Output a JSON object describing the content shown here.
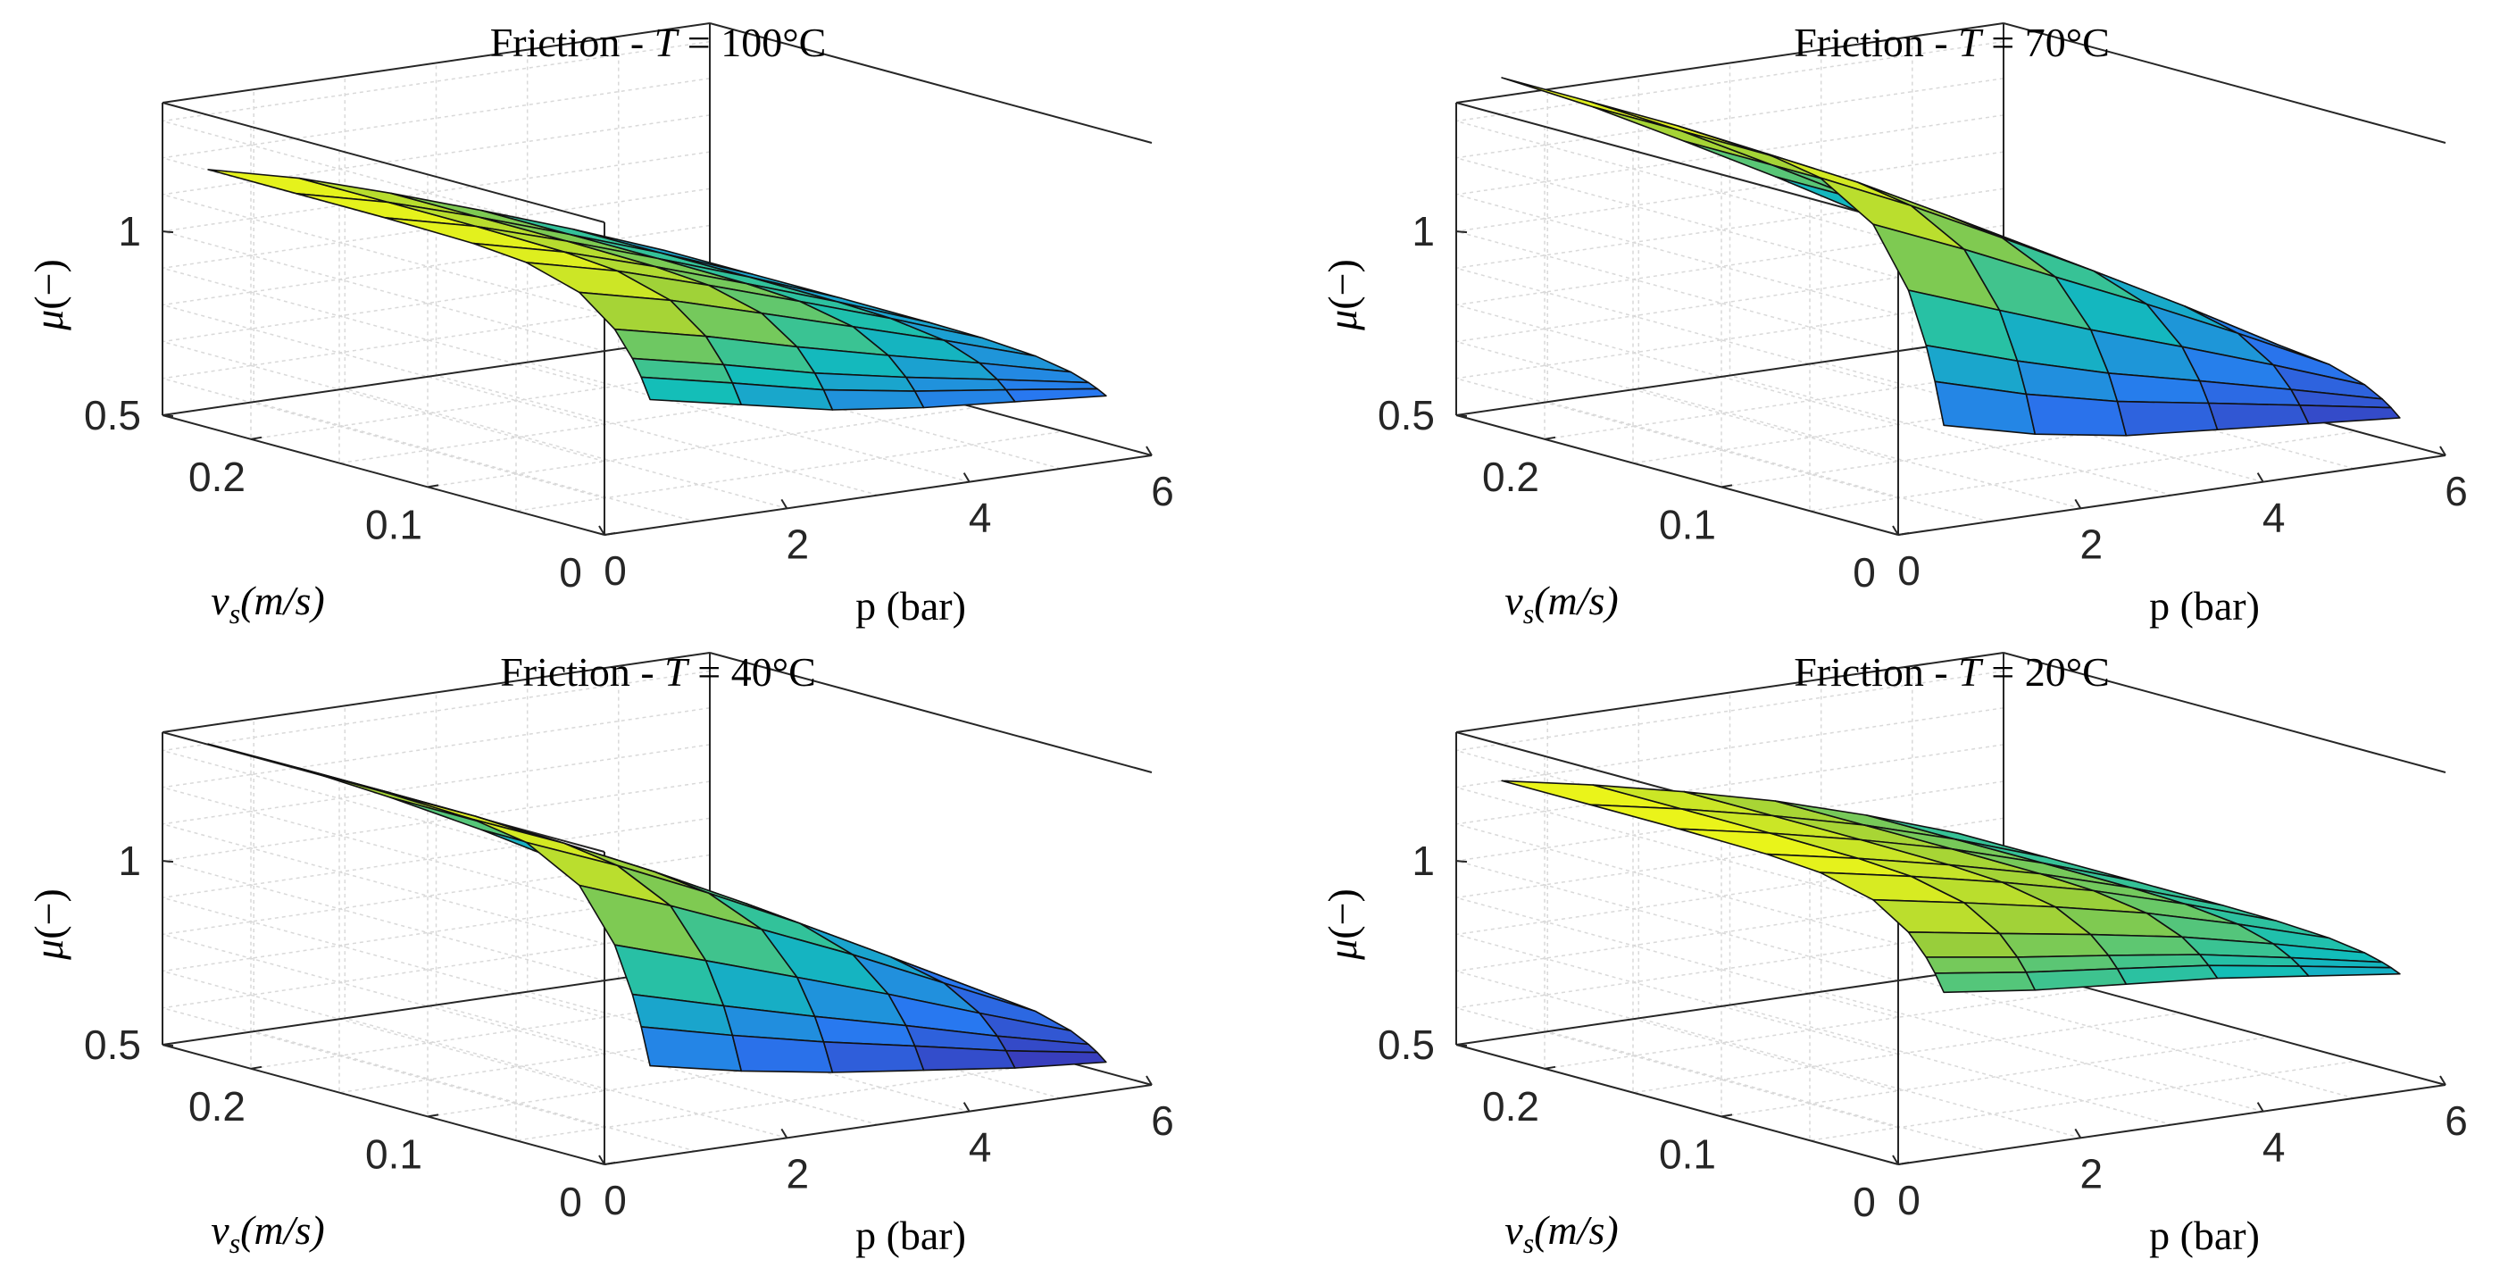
{
  "chart_data": [
    {
      "type": "surface",
      "title_prefix": "Friction - ",
      "title_var": "T",
      "title_value": " = 100°C",
      "xlabel": "p (bar)",
      "ylabel": "v_s(m/s)",
      "ylabel_var": "v",
      "ylabel_sub": "s",
      "ylabel_unit": "(m/s)",
      "zlabel": "μ(−)",
      "zlabel_var": "μ",
      "zlabel_unit": "(−)",
      "xticks": [
        "0",
        "2",
        "4",
        "6"
      ],
      "yticks": [
        "0",
        "0.1",
        "0.2"
      ],
      "zticks": [
        "0.5",
        "1"
      ],
      "xlim": [
        0,
        6
      ],
      "ylim": [
        0,
        0.25
      ],
      "zlim": [
        0.5,
        1.35
      ],
      "p": [
        0.5,
        1.5,
        2.5,
        3.5,
        4.5,
        5.5
      ],
      "v": [
        0.0,
        0.005,
        0.01,
        0.02,
        0.04,
        0.07,
        0.1,
        0.15,
        0.2,
        0.25
      ],
      "mu_at_p_max": 1.15,
      "mu_at_v0": [
        0.85,
        0.8,
        0.75,
        0.72,
        0.7,
        0.68
      ]
    },
    {
      "type": "surface",
      "title_prefix": "Friction - ",
      "title_var": "T",
      "title_value": " = 70°C",
      "xlabel": "p (bar)",
      "ylabel": "v_s(m/s)",
      "ylabel_var": "v",
      "ylabel_sub": "s",
      "ylabel_unit": "(m/s)",
      "zlabel": "μ(−)",
      "zlabel_var": "μ",
      "zlabel_unit": "(−)",
      "xticks": [
        "0",
        "2",
        "4",
        "6"
      ],
      "yticks": [
        "0",
        "0.1",
        "0.2"
      ],
      "zticks": [
        "0.5",
        "1"
      ],
      "xlim": [
        0,
        6
      ],
      "ylim": [
        0,
        0.25
      ],
      "zlim": [
        0.5,
        1.35
      ],
      "p": [
        0.5,
        1.5,
        2.5,
        3.5,
        4.5,
        5.5
      ],
      "v": [
        0.0,
        0.005,
        0.01,
        0.02,
        0.04,
        0.07,
        0.1,
        0.15,
        0.2,
        0.25
      ],
      "mu_at_p_max": 1.4,
      "mu_at_v0": [
        0.78,
        0.72,
        0.68,
        0.66,
        0.64,
        0.62
      ]
    },
    {
      "type": "surface",
      "title_prefix": "Friction - ",
      "title_var": "T",
      "title_value": " = 40°C",
      "xlabel": "p (bar)",
      "ylabel": "v_s(m/s)",
      "ylabel_var": "v",
      "ylabel_sub": "s",
      "ylabel_unit": "(m/s)",
      "zlabel": "μ(−)",
      "zlabel_var": "μ",
      "zlabel_unit": "(−)",
      "xticks": [
        "0",
        "2",
        "4",
        "6"
      ],
      "yticks": [
        "0",
        "0.1",
        "0.2"
      ],
      "zticks": [
        "0.5",
        "1"
      ],
      "xlim": [
        0,
        6
      ],
      "ylim": [
        0,
        0.25
      ],
      "zlim": [
        0.5,
        1.35
      ],
      "p": [
        0.5,
        1.5,
        2.5,
        3.5,
        4.5,
        5.5
      ],
      "v": [
        0.0,
        0.005,
        0.01,
        0.02,
        0.04,
        0.07,
        0.1,
        0.15,
        0.2,
        0.25
      ],
      "mu_at_p_max": 1.3,
      "mu_at_v0": [
        0.75,
        0.7,
        0.66,
        0.63,
        0.6,
        0.58
      ]
    },
    {
      "type": "surface",
      "title_prefix": "Friction - ",
      "title_var": "T",
      "title_value": " = 20°C",
      "xlabel": "p (bar)",
      "ylabel": "v_s(m/s)",
      "ylabel_var": "v",
      "ylabel_sub": "s",
      "ylabel_unit": "(m/s)",
      "zlabel": "μ(−)",
      "zlabel_var": "μ",
      "zlabel_unit": "(−)",
      "xticks": [
        "0",
        "2",
        "4",
        "6"
      ],
      "yticks": [
        "0",
        "0.1",
        "0.2"
      ],
      "zticks": [
        "0.5",
        "1"
      ],
      "xlim": [
        0,
        6
      ],
      "ylim": [
        0,
        0.25
      ],
      "zlim": [
        0.5,
        1.35
      ],
      "p": [
        0.5,
        1.5,
        2.5,
        3.5,
        4.5,
        5.5
      ],
      "v": [
        0.0,
        0.005,
        0.01,
        0.02,
        0.04,
        0.07,
        0.1,
        0.15,
        0.2,
        0.25
      ],
      "mu_at_p_max": 1.2,
      "mu_at_v0": [
        0.95,
        0.92,
        0.9,
        0.88,
        0.85,
        0.82
      ]
    }
  ]
}
